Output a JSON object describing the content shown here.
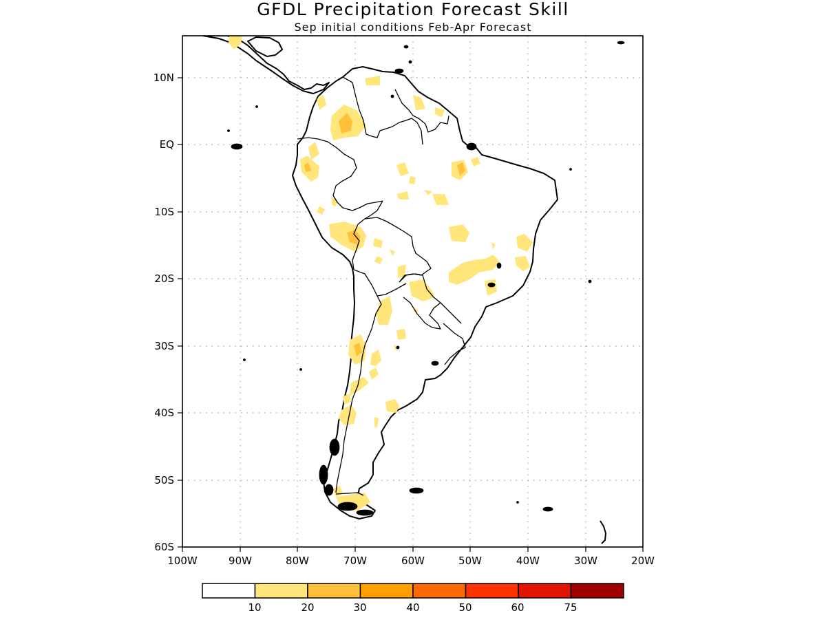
{
  "title": "GFDL Precipitation Forecast Skill",
  "subtitle": "Sep initial conditions  Feb-Apr Forecast",
  "x_ticks": [
    "100W",
    "90W",
    "80W",
    "70W",
    "60W",
    "50W",
    "40W",
    "30W",
    "20W"
  ],
  "y_ticks": [
    "10N",
    "EQ",
    "10S",
    "20S",
    "30S",
    "40S",
    "50S",
    "60S"
  ],
  "colorbar": {
    "labels": [
      "10",
      "20",
      "30",
      "40",
      "50",
      "60",
      "75"
    ],
    "colors": [
      "#ffffff",
      "#ffe57a",
      "#ffc03c",
      "#ffa000",
      "#ff6a00",
      "#ff3200",
      "#e01400",
      "#a00000"
    ]
  },
  "map": {
    "region": "South America",
    "lon_range": [
      -100,
      -20
    ],
    "lat_range": [
      -60,
      15
    ],
    "gridlines": true,
    "skill_patches": [
      {
        "lon": -71,
        "lat": 5,
        "level": "10-20"
      },
      {
        "lon": -72,
        "lat": 4,
        "level": "20-30"
      },
      {
        "lon": -75,
        "lat": -3,
        "level": "10-20"
      },
      {
        "lon": -71,
        "lat": -12,
        "level": "10-20"
      },
      {
        "lon": -69,
        "lat": -14,
        "level": "20-30"
      },
      {
        "lon": -65,
        "lat": -33,
        "level": "20-30"
      },
      {
        "lon": -45,
        "lat": -18,
        "level": "10-20"
      },
      {
        "lon": -38,
        "lat": -15,
        "level": "10-20"
      },
      {
        "lon": -70,
        "lat": -42,
        "level": "10-20"
      },
      {
        "lon": -70,
        "lat": -53,
        "level": "10-20"
      }
    ]
  }
}
